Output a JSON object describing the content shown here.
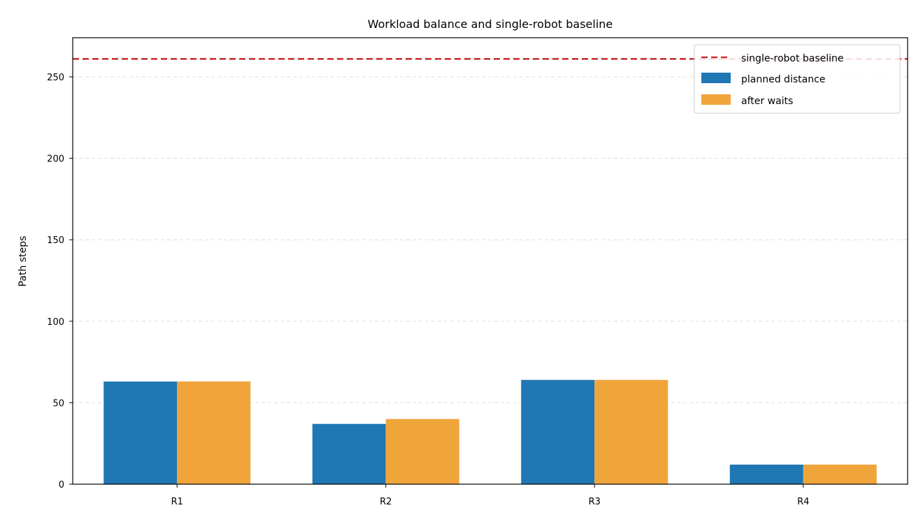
{
  "chart_data": {
    "type": "bar",
    "title": "Workload balance and single-robot baseline",
    "xlabel": "",
    "ylabel": "Path steps",
    "categories": [
      "R1",
      "R2",
      "R3",
      "R4"
    ],
    "series": [
      {
        "name": "planned distance",
        "values": [
          63,
          37,
          64,
          12
        ],
        "color": "#1f77b4"
      },
      {
        "name": "after waits",
        "values": [
          63,
          40,
          64,
          12
        ],
        "color": "#f0a53b"
      }
    ],
    "baseline": {
      "name": "single-robot baseline",
      "value": 261,
      "color": "#cc3333",
      "style": "dashed"
    },
    "ylim": [
      0,
      274
    ],
    "yticks": [
      0,
      50,
      100,
      150,
      200,
      250
    ],
    "ytick_labels": [
      "0",
      "50",
      "100",
      "150",
      "200",
      "250"
    ],
    "grid": "y-dashed",
    "legend_position": "upper-right"
  }
}
